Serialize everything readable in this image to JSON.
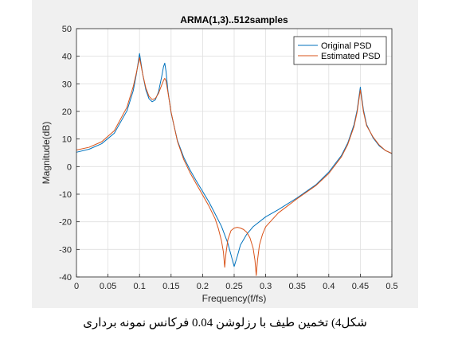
{
  "chart_data": {
    "type": "line",
    "title": "ARMA(1,3)..512samples",
    "xlabel": "Frequency(f/fs)",
    "ylabel": "Magnitude(dB)",
    "xlim": [
      0,
      0.5
    ],
    "ylim": [
      -40,
      50
    ],
    "xticks": [
      "0",
      "0.05",
      "0.1",
      "0.15",
      "0.2",
      "0.25",
      "0.3",
      "0.35",
      "0.4",
      "0.45",
      "0.5"
    ],
    "yticks": [
      "-40",
      "-30",
      "-20",
      "-10",
      "0",
      "10",
      "20",
      "30",
      "40",
      "50"
    ],
    "grid": true,
    "legend_position": "top-right",
    "series": [
      {
        "name": "Original PSD",
        "color": "#0072bd",
        "x": [
          0,
          0.02,
          0.04,
          0.06,
          0.08,
          0.09,
          0.095,
          0.1,
          0.105,
          0.11,
          0.115,
          0.12,
          0.125,
          0.13,
          0.135,
          0.138,
          0.14,
          0.142,
          0.145,
          0.15,
          0.16,
          0.17,
          0.18,
          0.19,
          0.2,
          0.21,
          0.22,
          0.23,
          0.24,
          0.245,
          0.25,
          0.255,
          0.26,
          0.27,
          0.28,
          0.3,
          0.32,
          0.35,
          0.38,
          0.4,
          0.42,
          0.43,
          0.44,
          0.445,
          0.45,
          0.455,
          0.46,
          0.47,
          0.48,
          0.49,
          0.5
        ],
        "y": [
          5.2,
          6.3,
          8.3,
          12.1,
          20.2,
          27.5,
          33.5,
          41,
          33.5,
          27.8,
          24.6,
          23.5,
          24.2,
          27,
          32.5,
          36.2,
          37.5,
          34.5,
          27.5,
          19.5,
          9.5,
          3.4,
          -1.2,
          -5.2,
          -9,
          -12.8,
          -17.2,
          -21.7,
          -27.8,
          -32,
          -36.2,
          -32.5,
          -28.4,
          -24.5,
          -21.8,
          -18.2,
          -15.6,
          -11.3,
          -6.5,
          -2,
          4,
          8.5,
          15.2,
          20.5,
          28.8,
          20.5,
          15.2,
          10.5,
          7.5,
          5.8,
          4.7
        ]
      },
      {
        "name": "Estimated PSD",
        "color": "#d95319",
        "x": [
          0,
          0.02,
          0.04,
          0.06,
          0.08,
          0.09,
          0.095,
          0.1,
          0.105,
          0.11,
          0.115,
          0.12,
          0.125,
          0.13,
          0.135,
          0.138,
          0.14,
          0.142,
          0.145,
          0.15,
          0.16,
          0.17,
          0.18,
          0.19,
          0.2,
          0.21,
          0.22,
          0.225,
          0.23,
          0.233,
          0.235,
          0.237,
          0.24,
          0.245,
          0.25,
          0.255,
          0.26,
          0.265,
          0.27,
          0.275,
          0.28,
          0.283,
          0.285,
          0.287,
          0.29,
          0.295,
          0.3,
          0.32,
          0.35,
          0.38,
          0.4,
          0.42,
          0.43,
          0.44,
          0.445,
          0.45,
          0.455,
          0.46,
          0.47,
          0.48,
          0.49,
          0.5
        ],
        "y": [
          6,
          7,
          9,
          13,
          21.5,
          29,
          34,
          39.5,
          33.5,
          28.5,
          25.5,
          24.3,
          24.7,
          26.5,
          29.5,
          31.2,
          32,
          31,
          27,
          19.8,
          9.2,
          2.6,
          -2.2,
          -6.3,
          -10.3,
          -14.3,
          -19,
          -22.5,
          -27,
          -31,
          -36.5,
          -31.5,
          -26.5,
          -23.2,
          -22.3,
          -22,
          -22.3,
          -22.8,
          -23.8,
          -25.8,
          -29.5,
          -34,
          -39.5,
          -34,
          -28.5,
          -24.5,
          -21.8,
          -16.8,
          -11.6,
          -6.8,
          -2.5,
          3.5,
          8,
          14.5,
          19.8,
          27.8,
          19.8,
          14.8,
          10.8,
          7.8,
          5.8,
          4.8
        ]
      }
    ]
  },
  "caption": "شکل4) تخمین طیف با رزلوشن 0.04 فرکانس نمونه برداری"
}
